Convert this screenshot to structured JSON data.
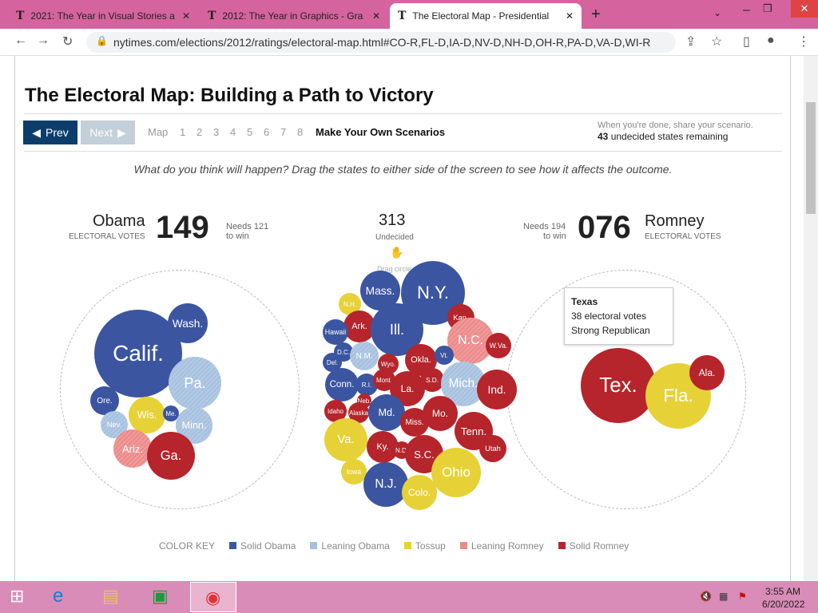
{
  "browser": {
    "tabs": [
      "2021: The Year in Visual Stories a",
      "2012: The Year in Graphics - Gra",
      "The Electoral Map - Presidential"
    ],
    "url": "nytimes.com/elections/2012/ratings/electoral-map.html#CO-R,FL-D,IA-D,NV-D,NH-D,OH-R,PA-D,VA-D,WI-R"
  },
  "title": "The Electoral Map: Building a Path to Victory",
  "nav": {
    "prev": "Prev",
    "next": "Next",
    "map": "Map",
    "pages": [
      "1",
      "2",
      "3",
      "4",
      "5",
      "6",
      "7",
      "8"
    ],
    "scenarios": "Make Your Own Scenarios",
    "share": "When you're done, share your scenario.",
    "remaining_count": "43",
    "remaining_text": "undecided states remaining"
  },
  "instructions": "What do you think will happen? Drag the states to either side of the screen to see how it affects the outcome.",
  "obama": {
    "name": "Obama",
    "sub": "ELECTORAL VOTES",
    "votes": "149",
    "needs": "Needs 121",
    "towin": "to win"
  },
  "romney": {
    "name": "Romney",
    "sub": "ELECTORAL VOTES",
    "votes": "076",
    "needs": "Needs 194",
    "towin": "to win"
  },
  "undecided": {
    "votes": "313",
    "label": "Undecided",
    "drag": "Drag circle"
  },
  "colors": {
    "solid_obama": "#3b55a0",
    "leaning_obama": "#a6c1df",
    "tossup": "#e6d137",
    "leaning_romney": "#ec8a8a",
    "solid_romney": "#b5252b"
  },
  "states": [
    [
      "Calif.",
      "solid_obama"
    ],
    [
      "Wash.",
      "solid_obama"
    ],
    [
      "Pa.",
      "leaning_obama"
    ],
    [
      "Ore.",
      "solid_obama"
    ],
    [
      "Wis.",
      "tossup"
    ],
    [
      "Me.",
      "solid_obama"
    ],
    [
      "Nev.",
      "leaning_obama"
    ],
    [
      "Minn.",
      "leaning_obama"
    ],
    [
      "Ariz.",
      "leaning_romney"
    ],
    [
      "Ga.",
      "solid_romney"
    ],
    [
      "Mass.",
      "solid_obama"
    ],
    [
      "N.Y.",
      "solid_obama"
    ],
    [
      "N.H.",
      "tossup"
    ],
    [
      "Kan.",
      "solid_romney"
    ],
    [
      "Ark.",
      "solid_romney"
    ],
    [
      "Ill.",
      "solid_obama"
    ],
    [
      "Hawaii",
      "solid_obama"
    ],
    [
      "N.C.",
      "leaning_romney"
    ],
    [
      "W.Va.",
      "solid_romney"
    ],
    [
      "D.C.",
      "solid_obama"
    ],
    [
      "N.M.",
      "leaning_obama"
    ],
    [
      "Del.",
      "solid_obama"
    ],
    [
      "Wyo.",
      "solid_romney"
    ],
    [
      "Okla.",
      "solid_romney"
    ],
    [
      "Vt.",
      "solid_obama"
    ],
    [
      "Conn.",
      "solid_obama"
    ],
    [
      "R.I.",
      "solid_obama"
    ],
    [
      "Mont.",
      "solid_romney"
    ],
    [
      "La.",
      "solid_romney"
    ],
    [
      "S.D.",
      "solid_romney"
    ],
    [
      "Mich.",
      "leaning_obama"
    ],
    [
      "Ind.",
      "solid_romney"
    ],
    [
      "Neb.",
      "solid_romney"
    ],
    [
      "Idaho",
      "solid_romney"
    ],
    [
      "Alaska",
      "solid_romney"
    ],
    [
      "Md.",
      "solid_obama"
    ],
    [
      "Miss.",
      "solid_romney"
    ],
    [
      "Mo.",
      "solid_romney"
    ],
    [
      "Tenn.",
      "solid_romney"
    ],
    [
      "Va.",
      "tossup"
    ],
    [
      "Ky.",
      "solid_romney"
    ],
    [
      "N.D.",
      "solid_romney"
    ],
    [
      "S.C.",
      "solid_romney"
    ],
    [
      "Utah",
      "solid_romney"
    ],
    [
      "Ohio",
      "tossup"
    ],
    [
      "Iowa",
      "tossup"
    ],
    [
      "N.J.",
      "solid_obama"
    ],
    [
      "Colo.",
      "tossup"
    ],
    [
      "Tex.",
      "solid_romney"
    ],
    [
      "Fla.",
      "tossup"
    ],
    [
      "Ala.",
      "solid_romney"
    ]
  ],
  "tooltip": {
    "state": "Texas",
    "votes": "38 electoral votes",
    "rating": "Strong Republican"
  },
  "key": {
    "title": "COLOR KEY",
    "items": [
      [
        "Solid Obama",
        "solid_obama"
      ],
      [
        "Leaning Obama",
        "leaning_obama"
      ],
      [
        "Tossup",
        "tossup"
      ],
      [
        "Leaning Romney",
        "leaning_romney"
      ],
      [
        "Solid Romney",
        "solid_romney"
      ]
    ]
  },
  "clock": {
    "time": "3:55 AM",
    "date": "6/20/2022"
  }
}
